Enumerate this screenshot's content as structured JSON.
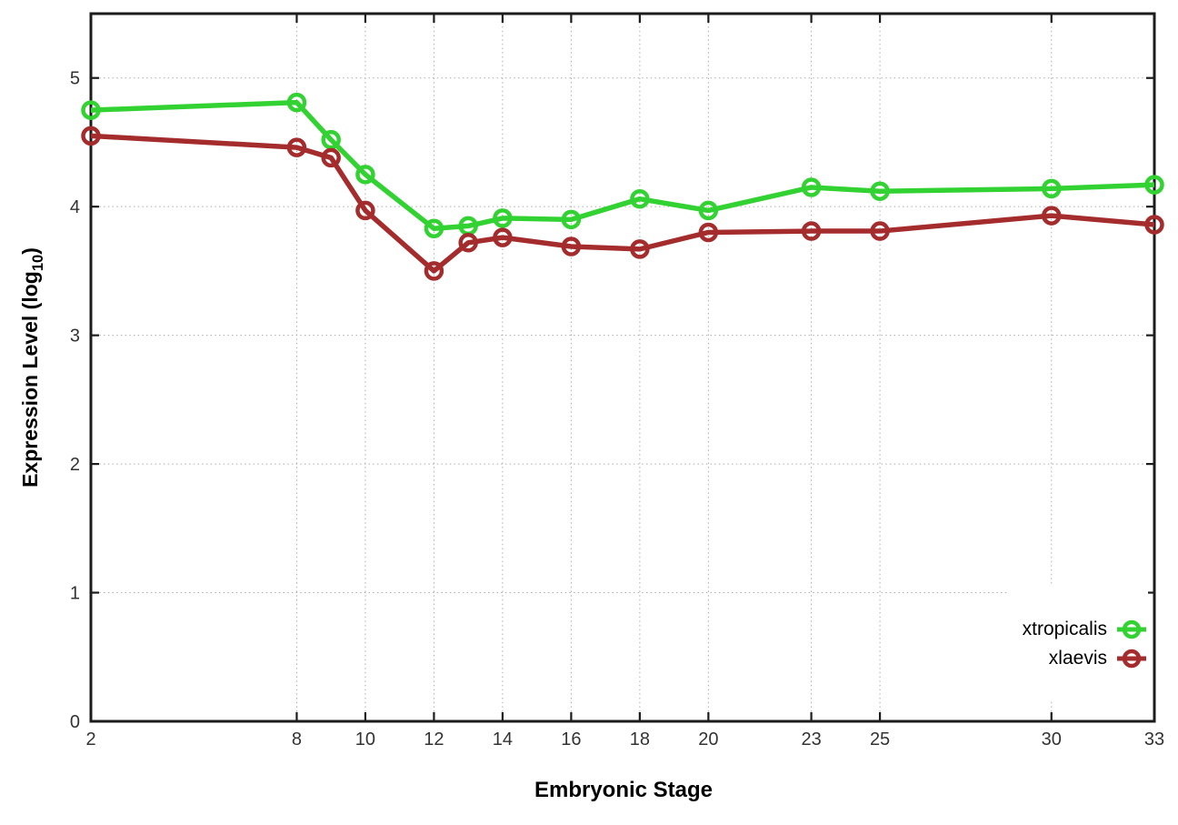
{
  "chart_data": {
    "type": "line",
    "title": "",
    "xlabel": "Embryonic Stage",
    "ylabel": "Expression Level (log10)",
    "ylabel_parts": {
      "prefix": "Expression Level (log",
      "sub": "10",
      "suffix": ")"
    },
    "xlim": [
      2,
      33
    ],
    "ylim": [
      0,
      5.5
    ],
    "grid": true,
    "legend_position": "bottom-right-inside",
    "x": [
      2,
      8,
      9,
      10,
      12,
      13,
      14,
      16,
      18,
      20,
      23,
      25,
      30,
      33
    ],
    "x_tick_labels": [
      2,
      8,
      10,
      12,
      14,
      16,
      18,
      20,
      23,
      25,
      30,
      33
    ],
    "y_ticks": [
      0,
      1,
      2,
      3,
      4,
      5
    ],
    "series": [
      {
        "name": "xtropicalis",
        "color": "#32d232",
        "marker": "open-circle",
        "values": [
          4.75,
          4.81,
          4.52,
          4.25,
          3.83,
          3.85,
          3.91,
          3.9,
          4.06,
          3.97,
          4.15,
          4.12,
          4.14,
          4.17
        ]
      },
      {
        "name": "xlaevis",
        "color": "#a42c2c",
        "marker": "open-circle",
        "values": [
          4.55,
          4.46,
          4.38,
          3.97,
          3.5,
          3.72,
          3.76,
          3.69,
          3.67,
          3.8,
          3.81,
          3.81,
          3.93,
          3.86
        ]
      }
    ],
    "colors": {
      "grid": "#adadad",
      "axis": "#1c1c1c",
      "tick_text": "#333333"
    }
  }
}
